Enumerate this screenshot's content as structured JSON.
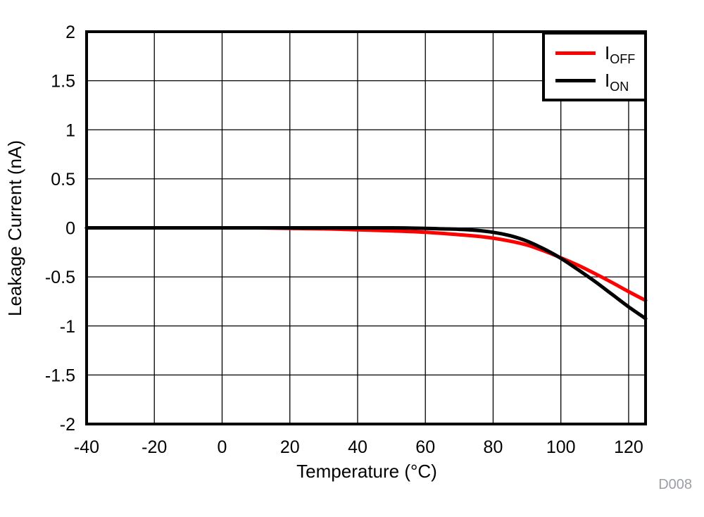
{
  "figure": {
    "watermark": "D008",
    "watermark_color": "#9a9ea6",
    "background": "#ffffff",
    "border_color": "#000000"
  },
  "legend": {
    "position": "top-right",
    "items": [
      {
        "label": "I",
        "sub": "OFF",
        "color": "#ff0000"
      },
      {
        "label": "I",
        "sub": "ON",
        "color": "#000000"
      }
    ]
  },
  "chart_data": {
    "type": "line",
    "title": "",
    "xlabel": "Temperature (°C)",
    "ylabel": "Leakage Current (nA)",
    "xlim": [
      -40,
      125
    ],
    "ylim": [
      -2,
      2
    ],
    "x_ticks": [
      -40,
      -20,
      0,
      20,
      40,
      60,
      80,
      100,
      120
    ],
    "y_ticks": [
      2,
      1.5,
      1,
      0.5,
      0,
      -0.5,
      -1,
      -1.5,
      -2
    ],
    "grid": true,
    "legend_position": "top-right",
    "series": [
      {
        "name": "IOFF",
        "color": "#ff0000",
        "points": [
          [
            -40,
            0
          ],
          [
            -20,
            0
          ],
          [
            0,
            0
          ],
          [
            10,
            0
          ],
          [
            20,
            -0.005
          ],
          [
            30,
            -0.01
          ],
          [
            40,
            -0.02
          ],
          [
            50,
            -0.03
          ],
          [
            60,
            -0.045
          ],
          [
            70,
            -0.07
          ],
          [
            75,
            -0.085
          ],
          [
            80,
            -0.105
          ],
          [
            85,
            -0.135
          ],
          [
            90,
            -0.175
          ],
          [
            95,
            -0.235
          ],
          [
            100,
            -0.305
          ],
          [
            105,
            -0.38
          ],
          [
            110,
            -0.465
          ],
          [
            115,
            -0.555
          ],
          [
            120,
            -0.65
          ],
          [
            125,
            -0.74
          ]
        ]
      },
      {
        "name": "ION",
        "color": "#000000",
        "points": [
          [
            -40,
            0
          ],
          [
            -20,
            0
          ],
          [
            0,
            0
          ],
          [
            20,
            0
          ],
          [
            40,
            0
          ],
          [
            50,
            0
          ],
          [
            60,
            -0.005
          ],
          [
            65,
            -0.01
          ],
          [
            70,
            -0.015
          ],
          [
            75,
            -0.025
          ],
          [
            80,
            -0.045
          ],
          [
            85,
            -0.08
          ],
          [
            90,
            -0.135
          ],
          [
            95,
            -0.215
          ],
          [
            100,
            -0.31
          ],
          [
            105,
            -0.425
          ],
          [
            110,
            -0.545
          ],
          [
            115,
            -0.675
          ],
          [
            120,
            -0.805
          ],
          [
            125,
            -0.925
          ]
        ]
      }
    ]
  }
}
